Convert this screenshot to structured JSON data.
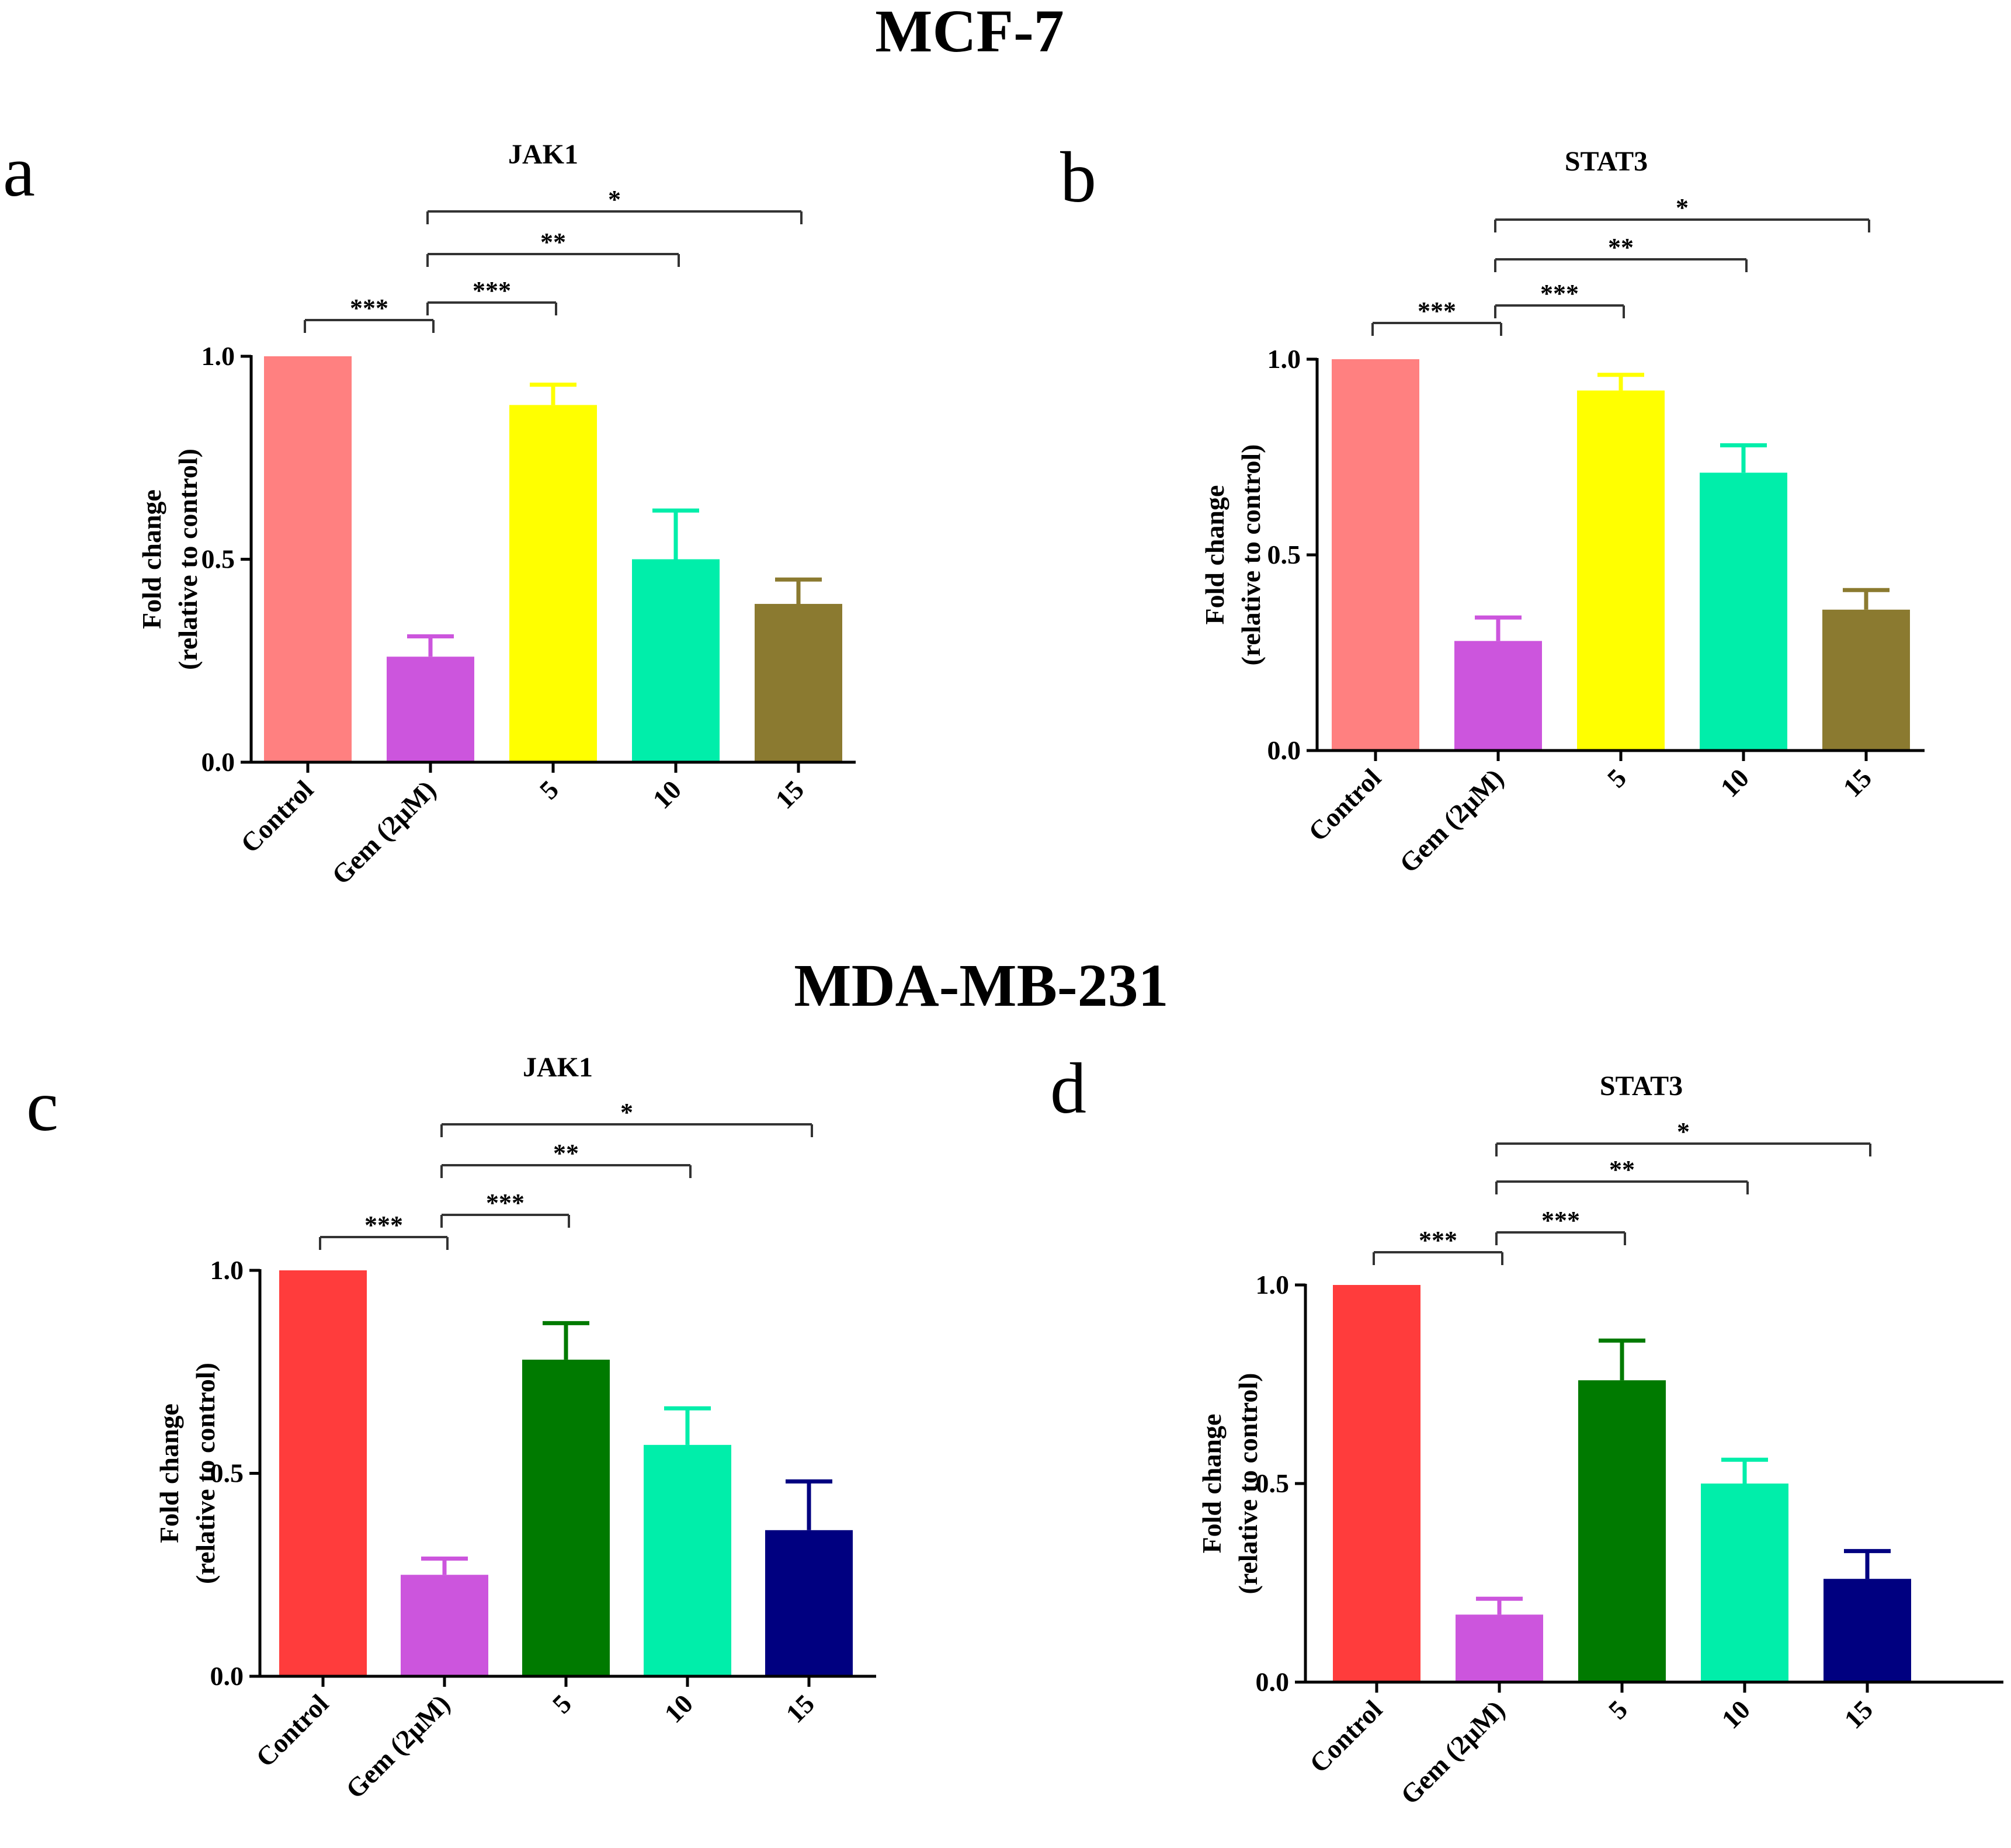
{
  "sections": [
    {
      "title": "MCF-7"
    },
    {
      "title": "MDA-MB-231"
    }
  ],
  "chart_data": [
    {
      "type": "bar",
      "panel": "a",
      "title": "JAK1",
      "ylabel": [
        "Fold change",
        "(relative to control)"
      ],
      "ylim": [
        0,
        1.0
      ],
      "yticks": [
        "0.0",
        "0.5",
        "1.0"
      ],
      "categories": [
        "Control",
        "Gem (2μM)",
        "5",
        "10",
        "15"
      ],
      "values": [
        1.0,
        0.26,
        0.88,
        0.5,
        0.39
      ],
      "errors": [
        0,
        0.05,
        0.05,
        0.12,
        0.06
      ],
      "colors": [
        "#ff8080",
        "#cc55dd",
        "#ffff00",
        "#00eeaa",
        "#8b7a30"
      ],
      "significance": [
        {
          "from": 0,
          "to": 1,
          "label": "***"
        },
        {
          "from": 1,
          "to": 2,
          "label": "***"
        },
        {
          "from": 1,
          "to": 3,
          "label": "**"
        },
        {
          "from": 1,
          "to": 4,
          "label": "*"
        }
      ]
    },
    {
      "type": "bar",
      "panel": "b",
      "title": "STAT3",
      "ylabel": [
        "Fold change",
        "(relative to control)"
      ],
      "ylim": [
        0,
        1.0
      ],
      "yticks": [
        "0.0",
        "0.5",
        "1.0"
      ],
      "categories": [
        "Control",
        "Gem (2μM)",
        "5",
        "10",
        "15"
      ],
      "values": [
        1.0,
        0.28,
        0.92,
        0.71,
        0.36
      ],
      "errors": [
        0,
        0.06,
        0.04,
        0.07,
        0.05
      ],
      "colors": [
        "#ff8080",
        "#cc55dd",
        "#ffff00",
        "#00eeaa",
        "#8b7a30"
      ],
      "significance": [
        {
          "from": 0,
          "to": 1,
          "label": "***"
        },
        {
          "from": 1,
          "to": 2,
          "label": "***"
        },
        {
          "from": 1,
          "to": 3,
          "label": "**"
        },
        {
          "from": 1,
          "to": 4,
          "label": "*"
        }
      ]
    },
    {
      "type": "bar",
      "panel": "c",
      "title": "JAK1",
      "ylabel": [
        "Fold change",
        "(relative to control)"
      ],
      "ylim": [
        0,
        1.0
      ],
      "yticks": [
        "0.0",
        "0.5",
        "1.0"
      ],
      "categories": [
        "Control",
        "Gem (2μM)",
        "5",
        "10",
        "15"
      ],
      "values": [
        1.0,
        0.25,
        0.78,
        0.57,
        0.36
      ],
      "errors": [
        0,
        0.04,
        0.09,
        0.09,
        0.12
      ],
      "colors": [
        "#ff3c3c",
        "#cc55dd",
        "#007a00",
        "#00eeaa",
        "#000080"
      ],
      "significance": [
        {
          "from": 0,
          "to": 1,
          "label": "***"
        },
        {
          "from": 1,
          "to": 2,
          "label": "***"
        },
        {
          "from": 1,
          "to": 3,
          "label": "**"
        },
        {
          "from": 1,
          "to": 4,
          "label": "*"
        }
      ]
    },
    {
      "type": "bar",
      "panel": "d",
      "title": "STAT3",
      "ylabel": [
        "Fold change",
        "(relative to control)"
      ],
      "ylim": [
        0,
        1.0
      ],
      "yticks": [
        "0.0",
        "0.5",
        "1.0"
      ],
      "categories": [
        "Control",
        "Gem (2μM)",
        "5",
        "10",
        "15"
      ],
      "values": [
        1.0,
        0.17,
        0.76,
        0.5,
        0.26
      ],
      "errors": [
        0,
        0.04,
        0.1,
        0.06,
        0.07
      ],
      "colors": [
        "#ff3c3c",
        "#cc55dd",
        "#007a00",
        "#00eeaa",
        "#000080"
      ],
      "significance": [
        {
          "from": 0,
          "to": 1,
          "label": "***"
        },
        {
          "from": 1,
          "to": 2,
          "label": "***"
        },
        {
          "from": 1,
          "to": 3,
          "label": "**"
        },
        {
          "from": 1,
          "to": 4,
          "label": "*"
        }
      ]
    }
  ]
}
